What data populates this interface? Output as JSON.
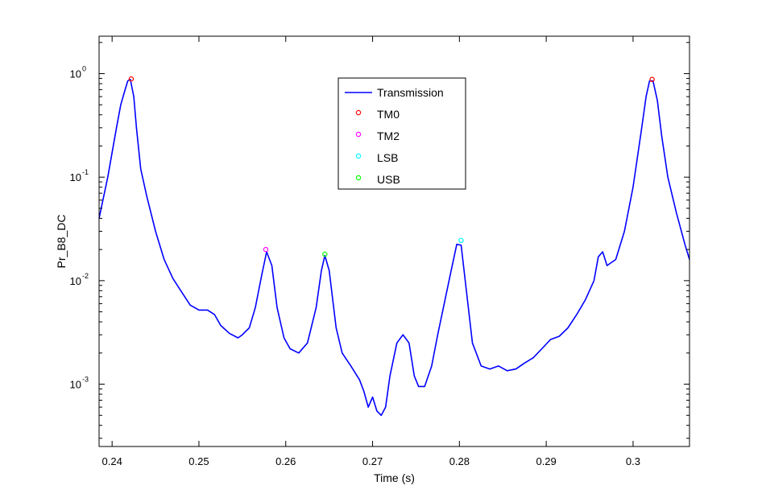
{
  "figure": {
    "background": "#ffffff",
    "axes_color": "#000000"
  },
  "chart_data": {
    "type": "line",
    "xlabel": "Time (s)",
    "ylabel": "Pr_B8_DC",
    "xlim": [
      0.2385,
      0.3065
    ],
    "ylim": [
      0.00025,
      2.3
    ],
    "yscale": "log",
    "grid": false,
    "legend_position": "top-center",
    "x_ticks": [
      0.24,
      0.25,
      0.26,
      0.27,
      0.28,
      0.29,
      0.3
    ],
    "x_tick_labels": [
      "0.24",
      "0.25",
      "0.26",
      "0.27",
      "0.28",
      "0.29",
      "0.3"
    ],
    "y_ticks": [
      {
        "value": 0.001,
        "base": "10",
        "exp": "-3"
      },
      {
        "value": 0.01,
        "base": "10",
        "exp": "-2"
      },
      {
        "value": 0.1,
        "base": "10",
        "exp": "-1"
      },
      {
        "value": 1,
        "base": "10",
        "exp": "0"
      }
    ],
    "series": [
      {
        "name": "Transmission",
        "color": "#0000ff",
        "style": "line",
        "x": [
          0.2385,
          0.2395,
          0.2405,
          0.241,
          0.2415,
          0.2418,
          0.2421,
          0.2425,
          0.2428,
          0.2433,
          0.244,
          0.245,
          0.246,
          0.247,
          0.248,
          0.249,
          0.25,
          0.251,
          0.2518,
          0.2525,
          0.2535,
          0.2545,
          0.255,
          0.2558,
          0.2565,
          0.2572,
          0.2578,
          0.2584,
          0.259,
          0.2598,
          0.2605,
          0.2615,
          0.2625,
          0.2635,
          0.2641,
          0.2645,
          0.265,
          0.2658,
          0.2665,
          0.2675,
          0.2685,
          0.269,
          0.2695,
          0.27,
          0.2705,
          0.271,
          0.2715,
          0.272,
          0.2728,
          0.2735,
          0.2742,
          0.2748,
          0.2753,
          0.276,
          0.2768,
          0.2775,
          0.279,
          0.2797,
          0.2802,
          0.2808,
          0.2815,
          0.2825,
          0.2835,
          0.2845,
          0.2855,
          0.2865,
          0.2875,
          0.2885,
          0.2895,
          0.2905,
          0.2915,
          0.2925,
          0.2935,
          0.2945,
          0.2955,
          0.296,
          0.2965,
          0.297,
          0.298,
          0.299,
          0.3,
          0.301,
          0.3015,
          0.3019,
          0.3023,
          0.3028,
          0.3033,
          0.304,
          0.305,
          0.306,
          0.3065
        ],
        "y": [
          0.04,
          0.1,
          0.3,
          0.5,
          0.7,
          0.85,
          0.88,
          0.6,
          0.3,
          0.12,
          0.065,
          0.03,
          0.016,
          0.0105,
          0.0078,
          0.0058,
          0.0052,
          0.0052,
          0.0047,
          0.0037,
          0.0031,
          0.0028,
          0.003,
          0.0035,
          0.0055,
          0.011,
          0.019,
          0.014,
          0.0055,
          0.0028,
          0.0022,
          0.002,
          0.0025,
          0.0055,
          0.0125,
          0.0175,
          0.0125,
          0.0035,
          0.002,
          0.0015,
          0.0011,
          0.00085,
          0.0006,
          0.00075,
          0.00055,
          0.0005,
          0.0006,
          0.0012,
          0.0025,
          0.003,
          0.0025,
          0.0012,
          0.00095,
          0.00095,
          0.0015,
          0.003,
          0.012,
          0.0225,
          0.022,
          0.008,
          0.0025,
          0.0015,
          0.0014,
          0.0015,
          0.00135,
          0.0014,
          0.0016,
          0.0018,
          0.0022,
          0.0027,
          0.0029,
          0.0035,
          0.0047,
          0.0065,
          0.01,
          0.017,
          0.019,
          0.014,
          0.016,
          0.03,
          0.08,
          0.3,
          0.6,
          0.85,
          0.85,
          0.55,
          0.25,
          0.1,
          0.045,
          0.022,
          0.016
        ]
      },
      {
        "name": "TM0",
        "color": "#ff0000",
        "style": "marker",
        "x": [
          0.2422,
          0.3022
        ],
        "y": [
          0.89,
          0.88
        ]
      },
      {
        "name": "TM2",
        "color": "#ff00ff",
        "style": "marker",
        "x": [
          0.2577
        ],
        "y": [
          0.02
        ]
      },
      {
        "name": "LSB",
        "color": "#00ffff",
        "style": "marker",
        "x": [
          0.2802
        ],
        "y": [
          0.0245
        ]
      },
      {
        "name": "USB",
        "color": "#00ff00",
        "style": "marker",
        "x": [
          0.2645
        ],
        "y": [
          0.018
        ]
      }
    ]
  }
}
